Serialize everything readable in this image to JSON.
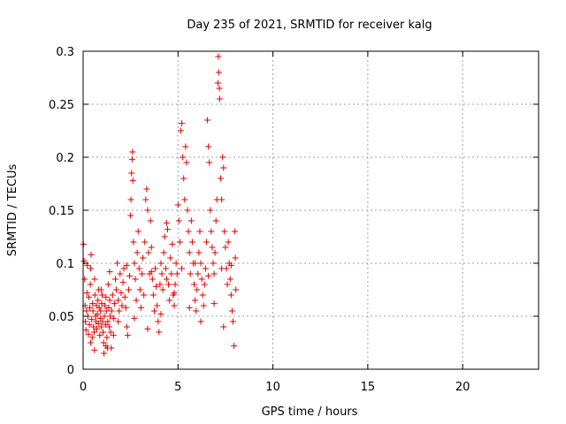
{
  "chart_data": {
    "type": "scatter",
    "title": "Day 235 of 2021, SRMTID for receiver kalg",
    "xlabel": "GPS time / hours",
    "ylabel": "SRMTID / TECUs",
    "xlim": [
      0,
      24
    ],
    "ylim": [
      0,
      0.3
    ],
    "xticks": [
      "0",
      "5",
      "10",
      "15",
      "20"
    ],
    "yticks": [
      "0",
      "0.05",
      "0.1",
      "0.15",
      "0.2",
      "0.25",
      "0.3"
    ],
    "grid": true,
    "marker": "+",
    "color": "#e00000",
    "series": [
      {
        "name": "SRMTID",
        "points": [
          [
            0.02,
            0.118
          ],
          [
            0.05,
            0.102
          ],
          [
            0.08,
            0.085
          ],
          [
            0.1,
            0.06
          ],
          [
            0.12,
            0.045
          ],
          [
            0.15,
            0.037
          ],
          [
            0.18,
            0.055
          ],
          [
            0.2,
            0.072
          ],
          [
            0.22,
            0.098
          ],
          [
            0.25,
            0.05
          ],
          [
            0.28,
            0.033
          ],
          [
            0.3,
            0.068
          ],
          [
            0.33,
            0.042
          ],
          [
            0.35,
            0.058
          ],
          [
            0.38,
            0.08
          ],
          [
            0.4,
            0.095
          ],
          [
            0.42,
            0.108
          ],
          [
            0.45,
            0.047
          ],
          [
            0.48,
            0.03
          ],
          [
            0.5,
            0.062
          ],
          [
            0.52,
            0.055
          ],
          [
            0.55,
            0.04
          ],
          [
            0.58,
            0.035
          ],
          [
            0.6,
            0.018
          ],
          [
            0.62,
            0.07
          ],
          [
            0.65,
            0.05
          ],
          [
            0.68,
            0.045
          ],
          [
            0.7,
            0.06
          ],
          [
            0.72,
            0.038
          ],
          [
            0.75,
            0.052
          ],
          [
            0.78,
            0.065
          ],
          [
            0.8,
            0.043
          ],
          [
            0.82,
            0.075
          ],
          [
            0.85,
            0.058
          ],
          [
            0.88,
            0.032
          ],
          [
            0.9,
            0.048
          ],
          [
            0.92,
            0.055
          ],
          [
            0.95,
            0.04
          ],
          [
            0.98,
            0.062
          ],
          [
            1.0,
            0.07
          ],
          [
            1.02,
            0.045
          ],
          [
            1.05,
            0.035
          ],
          [
            1.08,
            0.025
          ],
          [
            1.1,
            0.015
          ],
          [
            1.12,
            0.05
          ],
          [
            1.15,
            0.06
          ],
          [
            1.18,
            0.042
          ],
          [
            1.2,
            0.068
          ],
          [
            1.22,
            0.055
          ],
          [
            1.25,
            0.03
          ],
          [
            1.28,
            0.02
          ],
          [
            1.3,
            0.045
          ],
          [
            1.32,
            0.08
          ],
          [
            1.35,
            0.058
          ],
          [
            1.38,
            0.04
          ],
          [
            1.4,
            0.065
          ],
          [
            1.42,
            0.05
          ],
          [
            1.45,
            0.035
          ],
          [
            1.48,
            0.02
          ],
          [
            1.5,
            0.055
          ],
          [
            1.55,
            0.07
          ],
          [
            1.6,
            0.048
          ],
          [
            1.65,
            0.062
          ],
          [
            1.7,
            0.085
          ],
          [
            1.75,
            0.075
          ],
          [
            1.8,
            0.1
          ],
          [
            1.85,
            0.065
          ],
          [
            1.9,
            0.055
          ],
          [
            1.95,
            0.09
          ],
          [
            2.0,
            0.072
          ],
          [
            2.05,
            0.06
          ],
          [
            2.1,
            0.082
          ],
          [
            2.15,
            0.095
          ],
          [
            2.2,
            0.068
          ],
          [
            2.25,
            0.058
          ],
          [
            2.3,
            0.04
          ],
          [
            2.35,
            0.032
          ],
          [
            2.4,
            0.075
          ],
          [
            2.45,
            0.088
          ],
          [
            2.5,
            0.145
          ],
          [
            2.52,
            0.16
          ],
          [
            2.55,
            0.185
          ],
          [
            2.58,
            0.198
          ],
          [
            2.6,
            0.205
          ],
          [
            2.62,
            0.178
          ],
          [
            2.65,
            0.12
          ],
          [
            2.7,
            0.1
          ],
          [
            2.75,
            0.085
          ],
          [
            2.8,
            0.065
          ],
          [
            2.85,
            0.11
          ],
          [
            2.9,
            0.13
          ],
          [
            2.95,
            0.095
          ],
          [
            3.0,
            0.075
          ],
          [
            3.05,
            0.058
          ],
          [
            3.1,
            0.09
          ],
          [
            3.15,
            0.105
          ],
          [
            3.2,
            0.07
          ],
          [
            3.25,
            0.12
          ],
          [
            3.3,
            0.16
          ],
          [
            3.35,
            0.17
          ],
          [
            3.4,
            0.15
          ],
          [
            3.45,
            0.11
          ],
          [
            3.5,
            0.09
          ],
          [
            3.55,
            0.14
          ],
          [
            3.6,
            0.115
          ],
          [
            3.65,
            0.085
          ],
          [
            3.7,
            0.07
          ],
          [
            3.75,
            0.055
          ],
          [
            3.8,
            0.095
          ],
          [
            3.85,
            0.078
          ],
          [
            3.9,
            0.06
          ],
          [
            3.95,
            0.045
          ],
          [
            4.0,
            0.035
          ],
          [
            4.05,
            0.08
          ],
          [
            4.1,
            0.1
          ],
          [
            4.15,
            0.09
          ],
          [
            4.2,
            0.075
          ],
          [
            4.25,
            0.11
          ],
          [
            4.3,
            0.125
          ],
          [
            4.35,
            0.095
          ],
          [
            4.4,
            0.138
          ],
          [
            4.45,
            0.132
          ],
          [
            4.5,
            0.08
          ],
          [
            4.55,
            0.065
          ],
          [
            4.6,
            0.105
          ],
          [
            4.65,
            0.09
          ],
          [
            4.7,
            0.118
          ],
          [
            4.75,
            0.07
          ],
          [
            4.8,
            0.06
          ],
          [
            4.85,
            0.08
          ],
          [
            4.9,
            0.1
          ],
          [
            4.95,
            0.09
          ],
          [
            5.0,
            0.155
          ],
          [
            5.05,
            0.14
          ],
          [
            5.1,
            0.12
          ],
          [
            5.15,
            0.225
          ],
          [
            5.2,
            0.232
          ],
          [
            5.25,
            0.2
          ],
          [
            5.3,
            0.18
          ],
          [
            5.35,
            0.16
          ],
          [
            5.4,
            0.21
          ],
          [
            5.45,
            0.195
          ],
          [
            5.5,
            0.15
          ],
          [
            5.55,
            0.13
          ],
          [
            5.6,
            0.11
          ],
          [
            5.65,
            0.09
          ],
          [
            5.7,
            0.14
          ],
          [
            5.75,
            0.12
          ],
          [
            5.8,
            0.1
          ],
          [
            5.85,
            0.08
          ],
          [
            5.9,
            0.065
          ],
          [
            5.95,
            0.055
          ],
          [
            6.0,
            0.075
          ],
          [
            6.05,
            0.09
          ],
          [
            6.1,
            0.11
          ],
          [
            6.15,
            0.13
          ],
          [
            6.2,
            0.1
          ],
          [
            6.25,
            0.085
          ],
          [
            6.3,
            0.07
          ],
          [
            6.35,
            0.06
          ],
          [
            6.4,
            0.08
          ],
          [
            6.45,
            0.095
          ],
          [
            6.5,
            0.12
          ],
          [
            6.55,
            0.235
          ],
          [
            6.6,
            0.21
          ],
          [
            6.65,
            0.195
          ],
          [
            6.7,
            0.15
          ],
          [
            6.75,
            0.13
          ],
          [
            6.8,
            0.115
          ],
          [
            6.85,
            0.1
          ],
          [
            6.9,
            0.09
          ],
          [
            6.95,
            0.11
          ],
          [
            7.0,
            0.14
          ],
          [
            7.05,
            0.16
          ],
          [
            7.1,
            0.27
          ],
          [
            7.12,
            0.295
          ],
          [
            7.15,
            0.28
          ],
          [
            7.18,
            0.265
          ],
          [
            7.2,
            0.255
          ],
          [
            7.25,
            0.18
          ],
          [
            7.3,
            0.16
          ],
          [
            7.35,
            0.2
          ],
          [
            7.4,
            0.19
          ],
          [
            7.45,
            0.13
          ],
          [
            7.5,
            0.115
          ],
          [
            7.55,
            0.095
          ],
          [
            7.6,
            0.08
          ],
          [
            7.65,
            0.12
          ],
          [
            7.7,
            0.1
          ],
          [
            7.75,
            0.085
          ],
          [
            7.8,
            0.07
          ],
          [
            7.85,
            0.055
          ],
          [
            7.9,
            0.045
          ],
          [
            7.95,
            0.022
          ],
          [
            8.0,
            0.13
          ],
          [
            8.02,
            0.105
          ],
          [
            8.05,
            0.075
          ],
          [
            1.6,
            0.032
          ],
          [
            2.7,
            0.048
          ],
          [
            3.4,
            0.038
          ],
          [
            4.1,
            0.052
          ],
          [
            4.8,
            0.072
          ],
          [
            5.6,
            0.058
          ],
          [
            6.2,
            0.045
          ],
          [
            6.9,
            0.062
          ],
          [
            7.4,
            0.04
          ],
          [
            0.4,
            0.025
          ],
          [
            1.2,
            0.022
          ],
          [
            0.95,
            0.075
          ],
          [
            1.85,
            0.045
          ],
          [
            2.3,
            0.098
          ],
          [
            3.6,
            0.092
          ],
          [
            4.4,
            0.085
          ],
          [
            5.2,
            0.095
          ],
          [
            5.9,
            0.1
          ],
          [
            6.6,
            0.088
          ],
          [
            7.3,
            0.095
          ],
          [
            7.8,
            0.098
          ],
          [
            0.6,
            0.085
          ],
          [
            1.4,
            0.092
          ]
        ]
      }
    ]
  }
}
